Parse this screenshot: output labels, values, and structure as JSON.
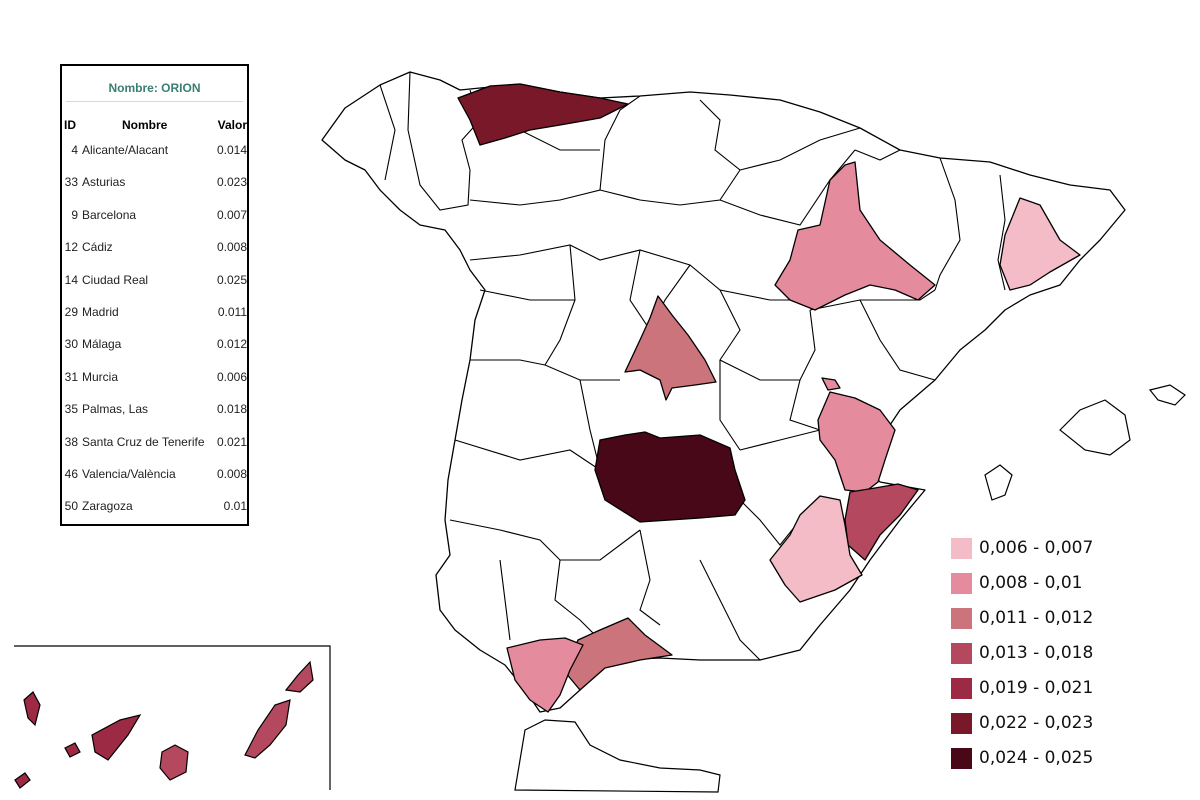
{
  "table": {
    "title": "Nombre: ORION",
    "headers": {
      "id": "ID",
      "name": "Nombre",
      "value": "Valor"
    },
    "rows": [
      {
        "id": "4",
        "name": "Alicante/Alacant",
        "value": "0.014"
      },
      {
        "id": "33",
        "name": "Asturias",
        "value": "0.023"
      },
      {
        "id": "9",
        "name": "Barcelona",
        "value": "0.007"
      },
      {
        "id": "12",
        "name": "Cádiz",
        "value": "0.008"
      },
      {
        "id": "14",
        "name": "Ciudad Real",
        "value": "0.025"
      },
      {
        "id": "29",
        "name": "Madrid",
        "value": "0.011"
      },
      {
        "id": "30",
        "name": "Málaga",
        "value": "0.012"
      },
      {
        "id": "31",
        "name": "Murcia",
        "value": "0.006"
      },
      {
        "id": "35",
        "name": "Palmas, Las",
        "value": "0.018"
      },
      {
        "id": "38",
        "name": "Santa Cruz de Tenerife",
        "value": "0.021"
      },
      {
        "id": "46",
        "name": "Valencia/València",
        "value": "0.008"
      },
      {
        "id": "50",
        "name": "Zaragoza",
        "value": "0.01"
      }
    ]
  },
  "legend": [
    {
      "label": "0,006 - 0,007",
      "color": "#f4bcc6"
    },
    {
      "label": "0,008 - 0,01",
      "color": "#e48c9e"
    },
    {
      "label": "0,011 - 0,012",
      "color": "#cc747c"
    },
    {
      "label": "0,013 - 0,018",
      "color": "#b4485e"
    },
    {
      "label": "0,019 - 0,021",
      "color": "#9c2a44"
    },
    {
      "label": "0,022 - 0,023",
      "color": "#781828"
    },
    {
      "label": "0,024 - 0,025",
      "color": "#480818"
    }
  ],
  "map_colors": {
    "border": "#000000",
    "empty": "#ffffff"
  }
}
